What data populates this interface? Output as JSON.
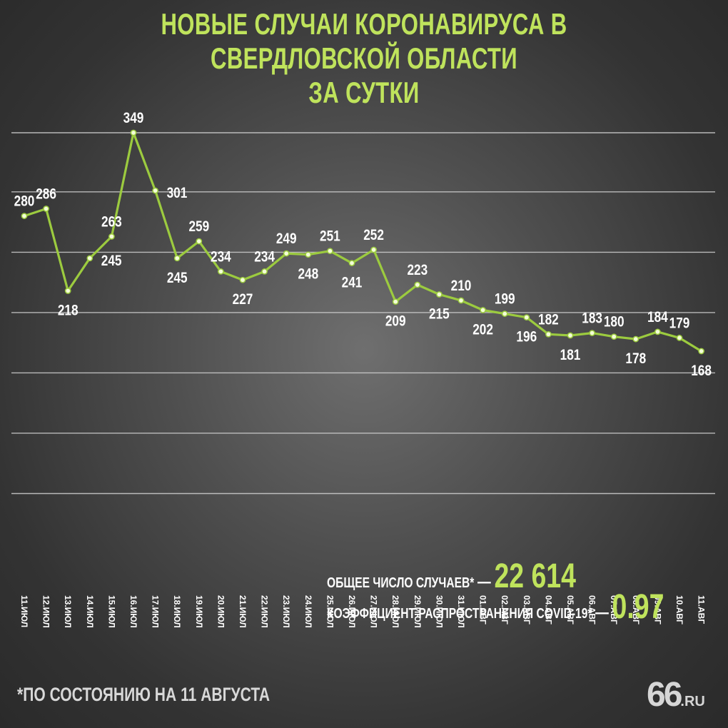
{
  "header": {
    "title_line1": "НОВЫЕ СЛУЧАИ КОРОНАВИРУСА В СВЕРДЛОВСКОЙ ОБЛАСТИ",
    "title_line2": "ЗА СУТКИ"
  },
  "stats": {
    "total_label": "ОБЩЕЕ ЧИСЛО СЛУЧАЕВ*",
    "total_value": "22 614",
    "coef_label": "КОЭФФИЦИЕНТ РАСПРОСТРАНЕНИЯ COVID-19*",
    "coef_value": "0.97",
    "dash": "—"
  },
  "footnote": "*ПО СОСТОЯНИЮ НА 11 АВГУСТА",
  "logo": {
    "big": "66",
    "small": ".RU"
  },
  "colors": {
    "accent": "#bfe35c",
    "line": "#9ccb3f",
    "text": "#ffffff",
    "grid": "#d0d0d0"
  },
  "chart_data": {
    "type": "line",
    "categories": [
      "11.ИЮЛ",
      "12.ИЮЛ",
      "13.ИЮЛ",
      "14.ИЮЛ",
      "15.ИЮЛ",
      "16.ИЮЛ",
      "17.ИЮЛ",
      "18.ИЮЛ",
      "19.ИЮЛ",
      "20.ИЮЛ",
      "21.ИЮЛ",
      "22.ИЮЛ",
      "23.ИЮЛ",
      "24.ИЮЛ",
      "25.ИЮЛ",
      "26.ИЮЛ",
      "27.ИЮЛ",
      "28.ИЮЛ",
      "29.ИЮЛ",
      "30.ИЮЛ",
      "31.ИЮЛ",
      "01.АВГ",
      "02.АВГ",
      "03.АВГ",
      "04.АВГ",
      "05.АВГ",
      "06.АВГ",
      "07.АВГ",
      "08.АВГ",
      "09.АВГ",
      "10.АВГ",
      "11.АВГ"
    ],
    "values": [
      280,
      286,
      218,
      245,
      263,
      349,
      301,
      245,
      259,
      234,
      227,
      234,
      249,
      248,
      251,
      241,
      252,
      209,
      223,
      215,
      210,
      202,
      199,
      196,
      182,
      181,
      183,
      180,
      178,
      184,
      179,
      168
    ],
    "label_position": [
      "above",
      "above",
      "below",
      "right",
      "above",
      "above",
      "right",
      "below",
      "above",
      "above",
      "below",
      "above",
      "above",
      "below",
      "above",
      "below",
      "above",
      "below",
      "above",
      "below",
      "above",
      "below",
      "above",
      "below",
      "above",
      "below",
      "above",
      "above",
      "below",
      "above",
      "above",
      "below"
    ],
    "ylim": [
      0,
      350
    ],
    "grid": true
  }
}
